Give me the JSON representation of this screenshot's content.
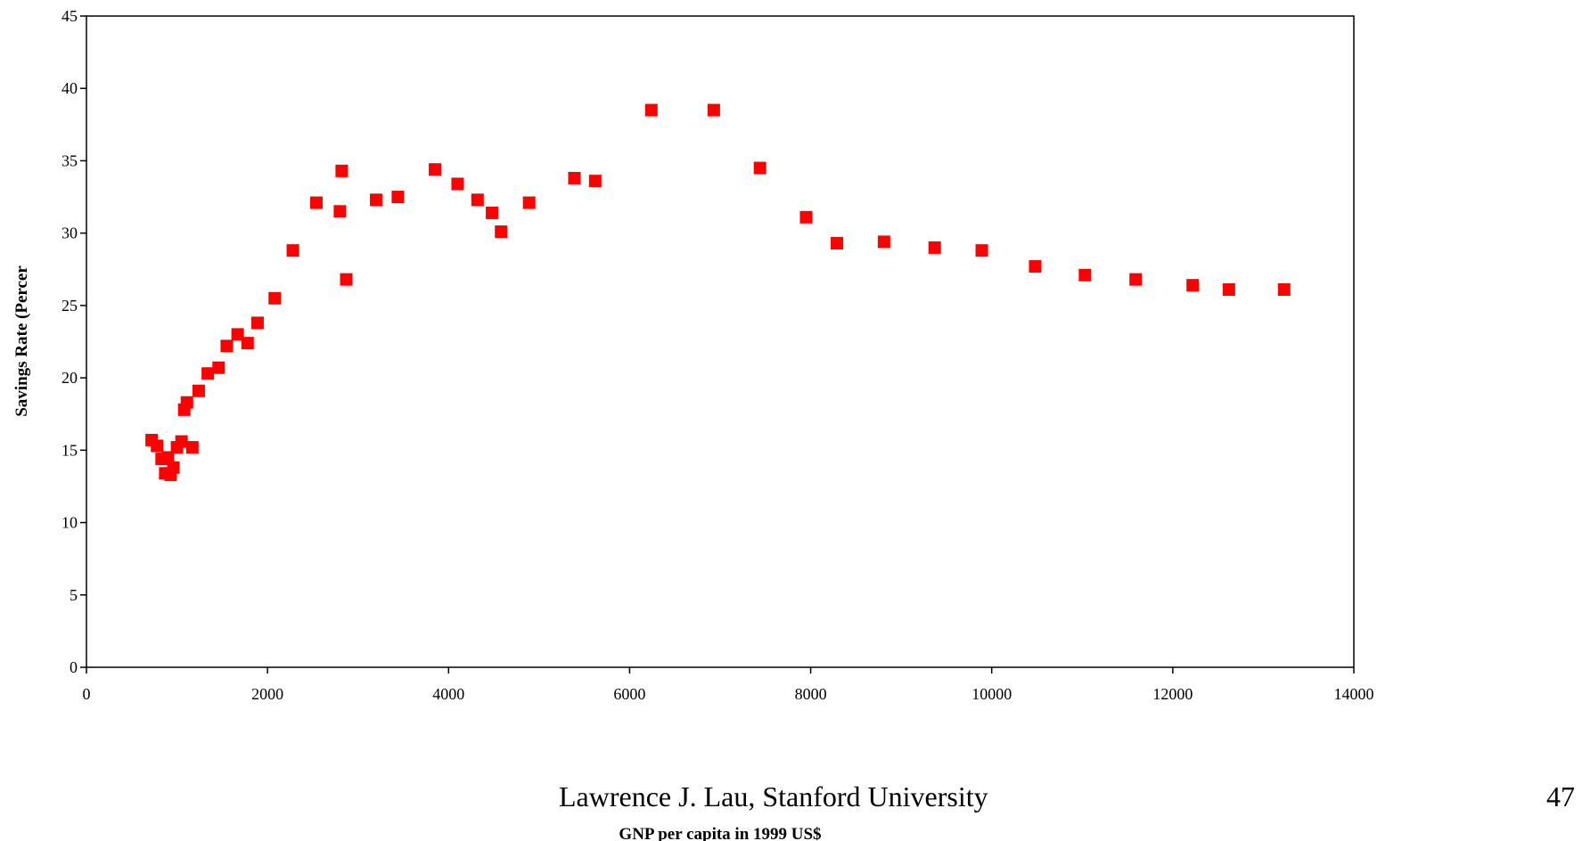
{
  "chart_data": {
    "type": "scatter",
    "title": "",
    "xlabel": "GNP per capita in 1999 US$",
    "ylabel": "Savings Rate (Percer",
    "xlim": [
      0,
      14000
    ],
    "ylim": [
      0,
      45
    ],
    "x_ticks": [
      "0",
      "2000",
      "4000",
      "6000",
      "8000",
      "10000",
      "12000",
      "14000"
    ],
    "y_ticks": [
      "0",
      "5",
      "10",
      "15",
      "20",
      "25",
      "30",
      "35",
      "40",
      "45"
    ],
    "grid": false,
    "legend": "none",
    "marker": "square",
    "marker_color": "#ff0000",
    "points": [
      {
        "x": 720,
        "y": 15.7
      },
      {
        "x": 780,
        "y": 15.3
      },
      {
        "x": 830,
        "y": 14.4
      },
      {
        "x": 870,
        "y": 13.4
      },
      {
        "x": 900,
        "y": 14.5
      },
      {
        "x": 930,
        "y": 13.3
      },
      {
        "x": 960,
        "y": 13.8
      },
      {
        "x": 1000,
        "y": 15.2
      },
      {
        "x": 1050,
        "y": 15.6
      },
      {
        "x": 1080,
        "y": 17.8
      },
      {
        "x": 1110,
        "y": 18.3
      },
      {
        "x": 1170,
        "y": 15.2
      },
      {
        "x": 1240,
        "y": 19.1
      },
      {
        "x": 1340,
        "y": 20.3
      },
      {
        "x": 1460,
        "y": 20.7
      },
      {
        "x": 1550,
        "y": 22.2
      },
      {
        "x": 1670,
        "y": 23.0
      },
      {
        "x": 1780,
        "y": 22.4
      },
      {
        "x": 1890,
        "y": 23.8
      },
      {
        "x": 2080,
        "y": 25.5
      },
      {
        "x": 2280,
        "y": 28.8
      },
      {
        "x": 2540,
        "y": 32.1
      },
      {
        "x": 2800,
        "y": 31.5
      },
      {
        "x": 2820,
        "y": 34.3
      },
      {
        "x": 2870,
        "y": 26.8
      },
      {
        "x": 3200,
        "y": 32.3
      },
      {
        "x": 3440,
        "y": 32.5
      },
      {
        "x": 3850,
        "y": 34.4
      },
      {
        "x": 4100,
        "y": 33.4
      },
      {
        "x": 4320,
        "y": 32.3
      },
      {
        "x": 4480,
        "y": 31.4
      },
      {
        "x": 4580,
        "y": 30.1
      },
      {
        "x": 4890,
        "y": 32.1
      },
      {
        "x": 5390,
        "y": 33.8
      },
      {
        "x": 5620,
        "y": 33.6
      },
      {
        "x": 6240,
        "y": 38.5
      },
      {
        "x": 6930,
        "y": 38.5
      },
      {
        "x": 7440,
        "y": 34.5
      },
      {
        "x": 7950,
        "y": 31.1
      },
      {
        "x": 8290,
        "y": 29.3
      },
      {
        "x": 8810,
        "y": 29.4
      },
      {
        "x": 9370,
        "y": 29.0
      },
      {
        "x": 9890,
        "y": 28.8
      },
      {
        "x": 10480,
        "y": 27.7
      },
      {
        "x": 11030,
        "y": 27.1
      },
      {
        "x": 11590,
        "y": 26.8
      },
      {
        "x": 12220,
        "y": 26.4
      },
      {
        "x": 12620,
        "y": 26.1
      },
      {
        "x": 13230,
        "y": 26.1
      }
    ]
  },
  "footer": {
    "credit": "Lawrence J. Lau, Stanford University",
    "page_number": "47"
  }
}
